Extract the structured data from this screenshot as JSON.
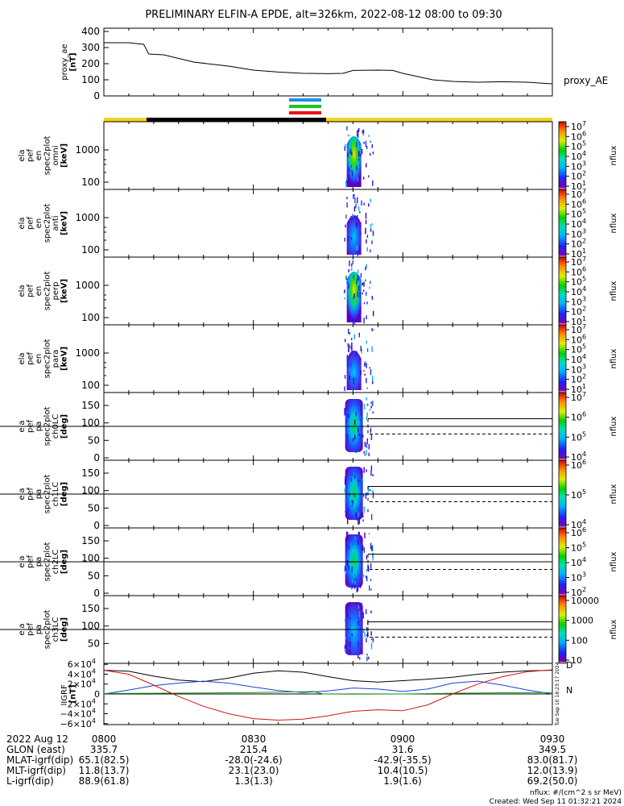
{
  "title": "PRELIMINARY ELFIN-A EPDE, alt=326km, 2022-08-12 08:00 to 09:30",
  "colors": {
    "fgm_state_yellow": "#f5d21e",
    "fgm_state_black": "#000000",
    "epd_bar_blue": "#1e8cf0",
    "epd_bar_green": "#1ec81e",
    "epd_bar_red": "#e61414",
    "bx": "#000000",
    "by": "#1e3cdc",
    "bz": "#14a014",
    "bt": "#d21414",
    "loss_cone": "#000000"
  },
  "chart_data": [
    {
      "type": "line",
      "panel": "proxy_ae",
      "ylabel_lines": [
        "proxy_ae",
        "[nT]"
      ],
      "legend": "proxy_AE",
      "ylim": [
        0,
        420
      ],
      "yticks": [
        0,
        100,
        200,
        300,
        400
      ],
      "x": [
        0,
        5,
        8,
        9,
        12,
        18,
        25,
        30,
        35,
        40,
        45,
        48,
        50,
        55,
        58,
        60,
        63,
        66,
        70,
        75,
        80,
        85,
        90
      ],
      "y": [
        330,
        330,
        320,
        260,
        255,
        210,
        185,
        160,
        148,
        140,
        138,
        140,
        158,
        160,
        158,
        140,
        120,
        100,
        90,
        85,
        88,
        85,
        75
      ]
    },
    {
      "type": "heatmap",
      "panel": "ela_pef_en_spec2plot_omni",
      "ylabel_lines": [
        "ela",
        "pef",
        "en",
        "spec2plot",
        "omni",
        "[keV]"
      ],
      "scale": "log",
      "yticks": [
        "100",
        "1000"
      ],
      "zlabel": "nflux",
      "zticks": [
        "10^1",
        "10^2",
        "10^3",
        "10^4",
        "10^5",
        "10^6",
        "10^7"
      ]
    },
    {
      "type": "heatmap",
      "panel": "ela_pef_en_spec2plot_anti",
      "ylabel_lines": [
        "ela",
        "pef",
        "en",
        "spec2plot",
        "anti",
        "[keV]"
      ],
      "scale": "log",
      "yticks": [
        "100",
        "1000"
      ],
      "zlabel": "nflux",
      "zticks": [
        "10^1",
        "10^2",
        "10^3",
        "10^4",
        "10^5",
        "10^6",
        "10^7"
      ]
    },
    {
      "type": "heatmap",
      "panel": "ela_pef_en_spec2plot_perp",
      "ylabel_lines": [
        "ela",
        "pef",
        "en",
        "spec2plot",
        "perp",
        "[keV]"
      ],
      "scale": "log",
      "yticks": [
        "100",
        "1000"
      ],
      "zlabel": "nflux",
      "zticks": [
        "10^1",
        "10^2",
        "10^3",
        "10^4",
        "10^5",
        "10^6",
        "10^7"
      ]
    },
    {
      "type": "heatmap",
      "panel": "ela_pef_en_spec2plot_para",
      "ylabel_lines": [
        "ela",
        "pef",
        "en",
        "spec2plot",
        "para",
        "[keV]"
      ],
      "scale": "log",
      "yticks": [
        "100",
        "1000"
      ],
      "zlabel": "nflux",
      "zticks": [
        "10^1",
        "10^2",
        "10^3",
        "10^4",
        "10^5",
        "10^6",
        "10^7"
      ]
    },
    {
      "type": "heatmap",
      "panel": "ela_pef_pa_spec2plot_ch0LC",
      "ylabel_lines": [
        "ela",
        "pef",
        "pa",
        "spec2plot",
        "ch0LC",
        "[deg]"
      ],
      "yticks": [
        "0",
        "50",
        "100",
        "150"
      ],
      "zlabel": "nflux",
      "zticks": [
        "10^4",
        "10^5",
        "10^6",
        "10^7"
      ]
    },
    {
      "type": "heatmap",
      "panel": "ela_pef_pa_spec2plot_ch1LC",
      "ylabel_lines": [
        "ela",
        "pef",
        "pa",
        "spec2plot",
        "ch1LC",
        "[deg]"
      ],
      "yticks": [
        "0",
        "50",
        "100",
        "150"
      ],
      "zlabel": "nflux",
      "zticks": [
        "10^4",
        "10^5",
        "10^6"
      ]
    },
    {
      "type": "heatmap",
      "panel": "ela_pef_pa_spec2plot_ch2LC",
      "ylabel_lines": [
        "ela",
        "pef",
        "pa",
        "spec2plot",
        "ch2LC",
        "[deg]"
      ],
      "yticks": [
        "0",
        "50",
        "100",
        "150"
      ],
      "zlabel": "nflux",
      "zticks": [
        "10^2",
        "10^3",
        "10^4",
        "10^5",
        "10^6"
      ]
    },
    {
      "type": "heatmap",
      "panel": "ela_pef_pa_spec2plot_ch3LC",
      "ylabel_lines": [
        "ela",
        "pef",
        "pa",
        "spec2plot",
        "ch3LC",
        "[deg]"
      ],
      "yticks": [
        "50",
        "100",
        "150"
      ],
      "zlabel": "nflux",
      "zticks": [
        "10",
        "100",
        "1000",
        "10000"
      ]
    },
    {
      "type": "line",
      "panel": "igrf",
      "ylabel_lines": [
        "IGRF",
        "[nT]"
      ],
      "ylim": [
        -62000,
        62000
      ],
      "yticks": [
        {
          "v": 60000,
          "m": "6",
          "e": "4"
        },
        {
          "v": 40000,
          "m": "4",
          "e": "4"
        },
        {
          "v": 20000,
          "m": "2",
          "e": "4"
        },
        {
          "v": 0,
          "m": "0",
          "e": ""
        },
        {
          "v": -20000,
          "m": "−2",
          "e": "4"
        },
        {
          "v": -40000,
          "m": "−4",
          "e": "4"
        },
        {
          "v": -60000,
          "m": "−6",
          "e": "4"
        }
      ],
      "legend_right": [
        "D",
        "N"
      ],
      "side_stamp": "Tue Sep 10 18:23:17 2024",
      "series": [
        {
          "x": [
            0,
            5,
            10,
            15,
            20,
            25,
            30,
            35,
            40,
            45,
            50,
            55,
            60,
            65,
            70,
            75,
            80,
            85,
            90
          ],
          "y": [
            48000,
            46000,
            36000,
            28000,
            25000,
            32000,
            42000,
            47000,
            44000,
            35000,
            27000,
            24000,
            27000,
            30000,
            34000,
            40000,
            44000,
            47000,
            48000
          ]
        },
        {
          "x": [
            0,
            5,
            10,
            15,
            20,
            25,
            30,
            35,
            40,
            45,
            50,
            55,
            60,
            65,
            70,
            75,
            80,
            85,
            90
          ],
          "y": [
            0,
            8000,
            17000,
            22000,
            26000,
            22000,
            14000,
            7000,
            3000,
            6000,
            12000,
            10000,
            5000,
            10000,
            22000,
            26000,
            18000,
            8000,
            0
          ]
        },
        {
          "x": [
            0,
            10,
            20,
            30,
            40,
            42,
            44,
            50,
            60,
            70,
            80,
            90
          ],
          "y": [
            1000,
            1500,
            2000,
            3000,
            4500,
            5000,
            0,
            -500,
            0,
            1500,
            2500,
            3000
          ]
        },
        {
          "x": [
            0,
            5,
            10,
            15,
            20,
            25,
            30,
            35,
            40,
            45,
            50,
            55,
            60,
            65,
            70,
            75,
            80,
            85,
            90
          ],
          "y": [
            48000,
            40000,
            18000,
            -5000,
            -25000,
            -40000,
            -50000,
            -53000,
            -51000,
            -44000,
            -35000,
            -32000,
            -34000,
            -22000,
            0,
            20000,
            35000,
            45000,
            49000
          ]
        }
      ]
    }
  ],
  "footer": {
    "date": "2022 Aug 12",
    "time_ticks": [
      "0800",
      "0830",
      "0900",
      "0930"
    ],
    "rows": [
      {
        "label": "GLON (east)",
        "values": [
          "335.7",
          "215.4",
          "31.6",
          "349.5"
        ]
      },
      {
        "label": "MLAT-igrf(dip)",
        "values": [
          "65.1(82.5)",
          "-28.0(-24.6)",
          "-42.9(-35.5)",
          "83.0(81.7)"
        ]
      },
      {
        "label": "MLT-igrf(dip)",
        "values": [
          "11.8(13.7)",
          "23.1(23.0)",
          "10.4(10.5)",
          "12.0(13.9)"
        ]
      },
      {
        "label": "L-igrf(dip)",
        "values": [
          "88.9(61.8)",
          "1.3(1.3)",
          "1.9(1.6)",
          "69.2(50.0)"
        ]
      }
    ],
    "nflux_units": "nflux: #/(cm^2 s sr MeV)",
    "created": "Created: Wed Sep 11 01:32:21 2024"
  }
}
